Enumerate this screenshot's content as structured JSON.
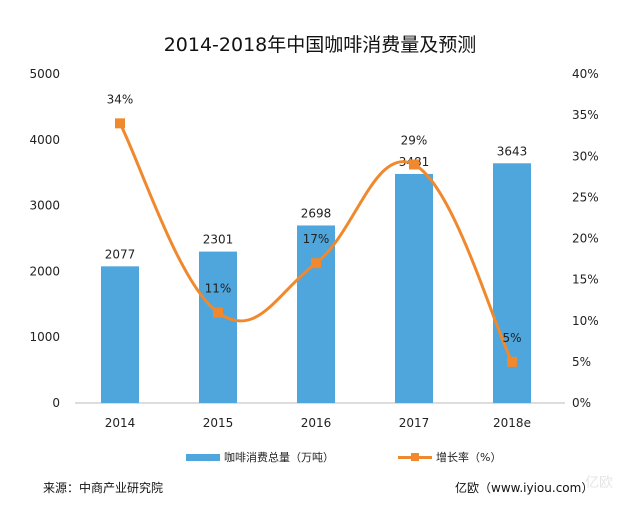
{
  "chart_data": {
    "type": "bar+line",
    "title": "2014-2018年中国咖啡消费量及预测",
    "categories": [
      "2014",
      "2015",
      "2016",
      "2017",
      "2018e"
    ],
    "series": [
      {
        "name": "咖啡消费总量（万吨）",
        "type": "bar",
        "axis": "left",
        "values": [
          2077,
          2301,
          2698,
          3481,
          3643
        ],
        "labels": [
          "2077",
          "2301",
          "2698",
          "3481",
          "3643"
        ],
        "color": "#4ea6dc"
      },
      {
        "name": "增长率（%）",
        "type": "line",
        "axis": "right",
        "values": [
          34,
          11,
          17,
          29,
          5
        ],
        "labels": [
          "34%",
          "11%",
          "17%",
          "29%",
          "5%"
        ],
        "color": "#f0892e"
      }
    ],
    "yleft": {
      "lim": [
        0,
        5000
      ],
      "ticks": [
        "0",
        "1000",
        "2000",
        "3000",
        "4000",
        "5000"
      ]
    },
    "yright": {
      "lim": [
        0,
        40
      ],
      "ticks": [
        "0%",
        "5%",
        "10%",
        "15%",
        "20%",
        "25%",
        "30%",
        "35%",
        "40%"
      ]
    },
    "grid": false,
    "legend": "bottom"
  },
  "footer": {
    "source": "来源：中商产业研究院",
    "credit": "亿欧（www.iyiou.com）",
    "watermark": "亿欧"
  }
}
